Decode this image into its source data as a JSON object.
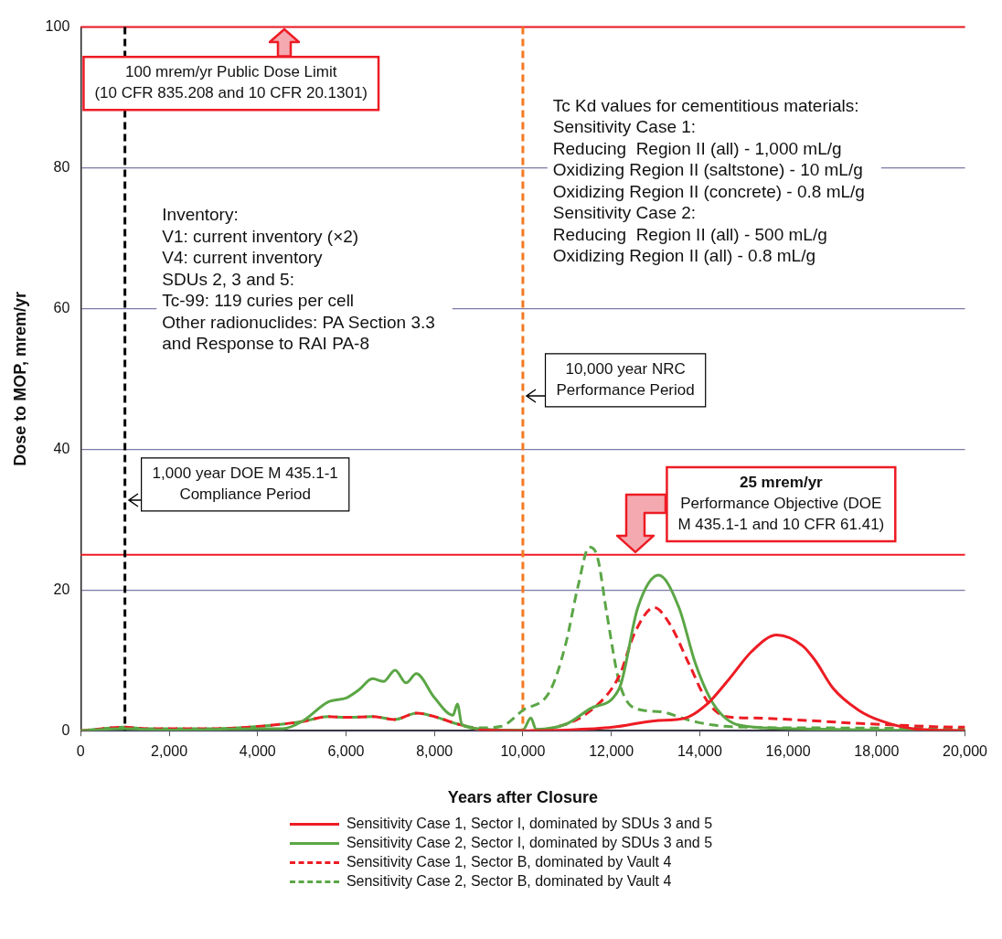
{
  "chart_data": {
    "type": "line",
    "xlabel": "Years after Closure",
    "ylabel": "Dose to MOP, mrem/yr",
    "xlim": [
      0,
      20000
    ],
    "xticks": [
      0,
      {
        "value": 2000,
        "label": "2,000"
      },
      {
        "value": 4000,
        "label": "4,000"
      },
      {
        "value": 6000,
        "label": "6,000"
      },
      {
        "value": 8000,
        "label": "8,000"
      },
      {
        "value": 10000,
        "label": "10,000"
      },
      {
        "value": 12000,
        "label": "12,000"
      },
      {
        "value": 14000,
        "label": "14,000"
      },
      {
        "value": 16000,
        "label": "16,000"
      },
      {
        "value": 18000,
        "label": "18,000"
      },
      {
        "value": 20000,
        "label": "20,000"
      }
    ],
    "ylim": [
      0,
      100
    ],
    "yticks": [
      0,
      20,
      40,
      60,
      80,
      100
    ],
    "grid": "y",
    "legend": "bottom",
    "marker": "none",
    "series": [
      {
        "name": "Sensitivity Case 1, Sector I, dominated by SDUs 3 and 5",
        "color": "#ed1c24",
        "line_style": "solid",
        "x": [
          9000,
          10000,
          11000,
          12040,
          12970,
          13670,
          14170,
          14660,
          15180,
          15740,
          16320,
          16610,
          17020,
          17600,
          18100,
          18820,
          20000
        ],
        "values": [
          0.1,
          0,
          0.1,
          0.5,
          1.4,
          1.8,
          3.8,
          7.3,
          11.3,
          13.6,
          12.1,
          10.0,
          6.0,
          2.9,
          1.4,
          0.3,
          0
        ]
      },
      {
        "name": "Sensitivity Case 2, Sector I, dominated by SDUs 3 and 5",
        "color": "#5ba646",
        "line_style": "solid",
        "x": [
          0,
          1000,
          2000,
          3000,
          4000,
          4570,
          5000,
          5600,
          6020,
          6290,
          6600,
          6850,
          7110,
          7360,
          7590,
          8000,
          8420,
          8520,
          8620,
          8980,
          9500,
          10000,
          10180,
          10300,
          11000,
          11540,
          12180,
          12600,
          13070,
          13530,
          13900,
          14310,
          14890,
          16000,
          18000,
          20000
        ],
        "values": [
          0,
          0.3,
          0.1,
          0.2,
          0.3,
          0.3,
          1.3,
          4.1,
          4.7,
          5.8,
          7.4,
          7.0,
          8.6,
          6.8,
          8.1,
          4.7,
          2.2,
          3.8,
          0.9,
          0.3,
          0.1,
          0.1,
          1.8,
          0.2,
          1.0,
          3.2,
          6.0,
          17.5,
          22.1,
          17.5,
          9.6,
          3.8,
          0.8,
          0.3,
          0.1,
          0
        ]
      },
      {
        "name": "Sensitivity Case 1, Sector B, dominated by Vault 4",
        "color": "#ed1c24",
        "line_style": "dashed",
        "x": [
          0,
          1000,
          1500,
          3000,
          4000,
          5000,
          5600,
          6000,
          6600,
          7100,
          7600,
          8000,
          8500,
          9000,
          9500,
          10000,
          10610,
          11540,
          12180,
          12530,
          12970,
          13320,
          13750,
          14170,
          14600,
          15240,
          16320,
          17390,
          18450,
          19880,
          20000
        ],
        "values": [
          0,
          0.5,
          0.3,
          0.3,
          0.6,
          1.3,
          2.0,
          1.9,
          2.0,
          1.6,
          2.5,
          2.0,
          1.0,
          0.2,
          0,
          0,
          0.3,
          2.9,
          7.8,
          13.9,
          17.5,
          15.2,
          9.6,
          4.2,
          2.0,
          1.8,
          1.5,
          1.1,
          0.8,
          0.5,
          0.5
        ]
      },
      {
        "name": "Sensitivity Case 2, Sector B, dominated by Vault 4",
        "color": "#5ba646",
        "line_style": "dashed",
        "x": [
          0,
          1000,
          1500,
          3000,
          4000,
          5000,
          5600,
          6000,
          6600,
          7100,
          7600,
          8000,
          8500,
          9000,
          9500,
          10000,
          10610,
          10960,
          11250,
          11500,
          11690,
          11900,
          12180,
          12530,
          13110,
          13750,
          14310,
          15000,
          17000,
          20000
        ],
        "values": [
          0,
          0.5,
          0.3,
          0.3,
          0.6,
          1.3,
          2.0,
          1.9,
          2.0,
          1.6,
          2.5,
          2.0,
          1.0,
          0.4,
          0.6,
          2.9,
          5.6,
          12.1,
          20.6,
          26.1,
          24.6,
          16.6,
          6.9,
          3.2,
          2.7,
          1.5,
          0.8,
          0.5,
          0.4,
          0.3
        ]
      }
    ],
    "ref_lines": [
      {
        "axis": "y",
        "value": 100,
        "label": "100 mrem/yr Public Dose Limit\n(10 CFR 835.208 and 10 CFR 20.1301)",
        "color": "#ed1c24",
        "line_style": "solid"
      },
      {
        "axis": "y",
        "value": 25,
        "label": "25 mrem/yr\nPerformance Objective (DOE\nM 435.1-1 and 10 CFR 61.41)",
        "color": "#ed1c24",
        "line_style": "solid"
      },
      {
        "axis": "x",
        "value": 1000,
        "label": "1,000 year DOE M 435.1-1\nCompliance Period",
        "color": "#000000",
        "line_style": "dashed"
      },
      {
        "axis": "x",
        "value": 10000,
        "label": "10,000 year NRC\nPerformance Period",
        "color": "#f47920",
        "line_style": "dashed"
      }
    ],
    "annotations": [
      "Inventory:\nV1: current inventory (×2)\nV4: current inventory\nSDUs 2, 3 and 5:\nTc-99: 119 curies per cell\nOther radionuclides: PA Section 3.3\nand Response to RAI PA-8",
      "Tc Kd values for cementitious materials:\nSensitivity Case 1:\nReducing  Region II (all) - 1,000 mL/g\nOxidizing Region II (saltstone) - 10 mL/g\nOxidizing Region II (concrete) - 0.8 mL/g\nSensitivity Case 2:\nReducing  Region II (all) - 500 mL/g\nOxidizing Region II (all) - 0.8 mL/g"
    ]
  }
}
